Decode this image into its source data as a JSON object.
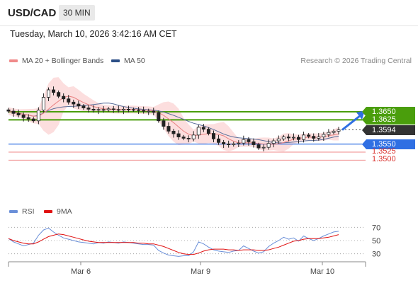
{
  "header": {
    "symbol": "USD/CAD",
    "timeframe": "30 MIN"
  },
  "timestamp": "Tuesday, March 10, 2026 3:42:16 AM CET",
  "legend": {
    "ma20_bollinger": "MA 20 + Bollinger Bands",
    "ma50": "MA 50",
    "rsi": "RSI",
    "rsi_ma": "9MA"
  },
  "credit": "Research © 2026 Trading Central",
  "colors": {
    "green": "#4a9e0c",
    "blue": "#2f6fe3",
    "red": "#f08a8a",
    "dark": "#333333",
    "candle": "#222222",
    "band": "#fbd3d3",
    "ma20": "#e88080",
    "ma50": "#5a6e9a",
    "rsi": "#6a8fd8",
    "rsi_ma": "#e01010"
  },
  "chart_data": [
    {
      "type": "candlestick",
      "x_labels": [
        "Mar 6",
        "Mar 9",
        "Mar 10"
      ],
      "levels": [
        {
          "price": 1.365,
          "label": "1.3650",
          "style": "resistance"
        },
        {
          "price": 1.3625,
          "label": "1.3625",
          "style": "resistance"
        },
        {
          "price": 1.3594,
          "label": "1.3594",
          "style": "last"
        },
        {
          "price": 1.355,
          "label": "1.3550",
          "style": "pivot"
        },
        {
          "price": 1.3525,
          "label": "1.3525",
          "style": "support"
        },
        {
          "price": 1.35,
          "label": "1.3500",
          "style": "support"
        }
      ],
      "close_path": [
        1.3652,
        1.3645,
        1.364,
        1.3632,
        1.3628,
        1.3622,
        1.3655,
        1.3695,
        1.3718,
        1.371,
        1.3698,
        1.369,
        1.368,
        1.3674,
        1.3668,
        1.3662,
        1.3658,
        1.3655,
        1.3657,
        1.3656,
        1.3659,
        1.3657,
        1.3655,
        1.3658,
        1.3657,
        1.3656,
        1.3654,
        1.3652,
        1.3652,
        1.3648,
        1.3622,
        1.3605,
        1.359,
        1.3582,
        1.3572,
        1.3568,
        1.3566,
        1.3578,
        1.3602,
        1.3596,
        1.3583,
        1.3566,
        1.3555,
        1.355,
        1.3548,
        1.3551,
        1.3553,
        1.3564,
        1.3557,
        1.3548,
        1.3538,
        1.354,
        1.3552,
        1.356,
        1.3566,
        1.3572,
        1.3569,
        1.3571,
        1.3564,
        1.3578,
        1.3574,
        1.3568,
        1.3572,
        1.358,
        1.3586,
        1.359,
        1.3594
      ],
      "forecast": {
        "from": 1.3594,
        "to": 1.365
      }
    },
    {
      "type": "line",
      "name": "RSI",
      "levels": [
        70,
        50,
        30
      ],
      "ylim": [
        20,
        80
      ],
      "values": [
        53,
        48,
        45,
        42,
        44,
        46,
        58,
        66,
        69,
        63,
        58,
        54,
        52,
        50,
        48,
        47,
        46,
        45,
        47,
        46,
        48,
        47,
        46,
        48,
        47,
        46,
        45,
        44,
        44,
        43,
        35,
        31,
        28,
        27,
        26,
        27,
        27,
        33,
        48,
        45,
        40,
        36,
        34,
        33,
        32,
        34,
        35,
        42,
        38,
        34,
        31,
        33,
        41,
        46,
        50,
        55,
        52,
        54,
        49,
        57,
        53,
        50,
        53,
        57,
        60,
        63,
        64
      ],
      "ma_values": [
        53,
        50,
        48,
        46,
        45,
        45,
        48,
        52,
        56,
        58,
        60,
        59,
        57,
        55,
        53,
        51,
        49,
        48,
        47,
        47,
        47,
        47,
        47,
        47,
        47,
        47,
        46,
        46,
        45,
        45,
        43,
        41,
        38,
        35,
        32,
        30,
        29,
        29,
        31,
        34,
        36,
        37,
        37,
        37,
        36,
        36,
        35,
        36,
        36,
        36,
        35,
        35,
        36,
        38,
        40,
        43,
        46,
        49,
        50,
        52,
        53,
        53,
        53,
        54,
        55,
        57,
        59
      ]
    }
  ]
}
